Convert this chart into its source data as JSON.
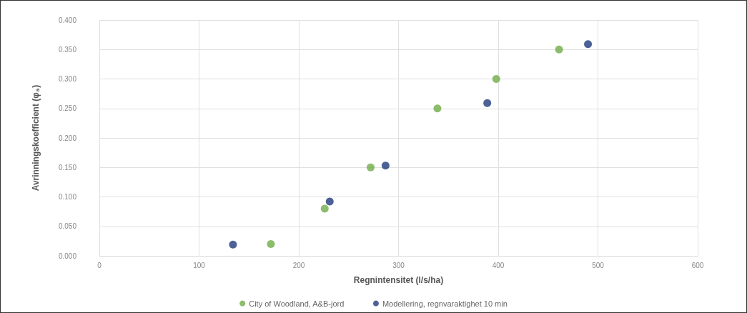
{
  "chart_data": {
    "type": "scatter",
    "xlabel": "Regnintensitet (l/s/ha)",
    "ylabel": "Avrinningskoefficient (φ$_{a}$)",
    "xlim": [
      0,
      600
    ],
    "xticks": [
      0,
      100,
      200,
      300,
      400,
      500,
      600
    ],
    "ylim": [
      0,
      0.4
    ],
    "yticks": [
      {
        "value": 0,
        "label": "0.000"
      },
      {
        "value": 0.05,
        "label": "0.050"
      },
      {
        "value": 0.1,
        "label": "0.100"
      },
      {
        "value": 0.15,
        "label": "0.150"
      },
      {
        "value": 0.2,
        "label": "0.200"
      },
      {
        "value": 0.25,
        "label": "0.250"
      },
      {
        "value": 0.3,
        "label": "0.300"
      },
      {
        "value": 0.35,
        "label": "0.350"
      },
      {
        "value": 0.4,
        "label": "0.400"
      }
    ],
    "grid": true,
    "legend": "bottom",
    "marker": "circle",
    "series": [
      {
        "name": "City of Woodland, A&B-jord",
        "color": "#70ad47",
        "x": [
          172,
          226,
          272,
          339,
          398,
          461
        ],
        "values": [
          0.02,
          0.08,
          0.15,
          0.25,
          0.3,
          0.35
        ]
      },
      {
        "name": "Modellering, regnvaraktighet 10 min",
        "color": "#1f3a7a",
        "x": [
          134,
          231,
          287,
          389,
          490
        ],
        "values": [
          0.019,
          0.092,
          0.153,
          0.259,
          0.359
        ]
      }
    ]
  }
}
